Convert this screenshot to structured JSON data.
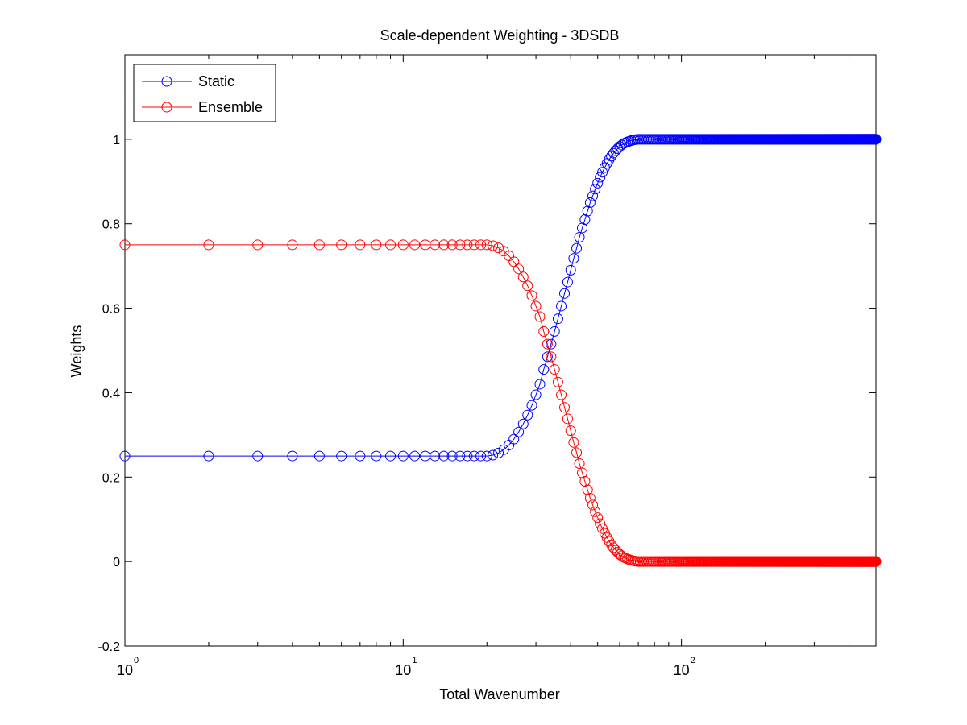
{
  "chart_data": {
    "type": "line",
    "title": "Scale-dependent Weighting - 3DSDB",
    "xlabel": "Total Wavenumber",
    "ylabel": "Weights",
    "xscale": "log",
    "xlim": [
      1,
      500
    ],
    "ylim": [
      -0.2,
      1.2
    ],
    "yticks": [
      "-0.2",
      "0",
      "0.2",
      "0.4",
      "0.6",
      "0.8",
      "1"
    ],
    "xticks": [
      {
        "base": "10",
        "exp": "0"
      },
      {
        "base": "10",
        "exp": "1"
      },
      {
        "base": "10",
        "exp": "2"
      }
    ],
    "x_values": "every integer wavenumber from 1 to 500",
    "grid": false,
    "legend_position": "top-left",
    "marker": "circle",
    "series": [
      {
        "name": "Static",
        "color": "#0000ff",
        "points": [
          [
            1,
            0.25
          ],
          [
            20,
            0.25
          ],
          [
            21,
            0.252
          ],
          [
            22,
            0.257
          ],
          [
            23,
            0.265
          ],
          [
            24,
            0.276
          ],
          [
            25,
            0.29
          ],
          [
            26,
            0.307
          ],
          [
            27,
            0.326
          ],
          [
            28,
            0.347
          ],
          [
            29,
            0.37
          ],
          [
            30,
            0.395
          ],
          [
            31,
            0.42
          ],
          [
            32,
            0.455
          ],
          [
            33,
            0.485
          ],
          [
            34,
            0.515
          ],
          [
            35,
            0.545
          ],
          [
            36,
            0.575
          ],
          [
            37,
            0.605
          ],
          [
            38,
            0.635
          ],
          [
            39,
            0.662
          ],
          [
            40,
            0.69
          ],
          [
            41,
            0.718
          ],
          [
            42,
            0.742
          ],
          [
            43,
            0.768
          ],
          [
            44,
            0.79
          ],
          [
            45,
            0.81
          ],
          [
            46,
            0.83
          ],
          [
            47,
            0.85
          ],
          [
            48,
            0.866
          ],
          [
            49,
            0.882
          ],
          [
            50,
            0.896
          ],
          [
            51,
            0.91
          ],
          [
            52,
            0.922
          ],
          [
            53,
            0.933
          ],
          [
            54,
            0.943
          ],
          [
            55,
            0.952
          ],
          [
            56,
            0.96
          ],
          [
            57,
            0.967
          ],
          [
            58,
            0.973
          ],
          [
            59,
            0.978
          ],
          [
            60,
            0.983
          ],
          [
            62,
            0.99
          ],
          [
            64,
            0.994
          ],
          [
            66,
            0.997
          ],
          [
            68,
            0.999
          ],
          [
            70,
            1.0
          ],
          [
            500,
            1.0
          ]
        ]
      },
      {
        "name": "Ensemble",
        "color": "#ff0000",
        "points": [
          [
            1,
            0.75
          ],
          [
            20,
            0.75
          ],
          [
            21,
            0.748
          ],
          [
            22,
            0.743
          ],
          [
            23,
            0.735
          ],
          [
            24,
            0.724
          ],
          [
            25,
            0.71
          ],
          [
            26,
            0.693
          ],
          [
            27,
            0.674
          ],
          [
            28,
            0.653
          ],
          [
            29,
            0.63
          ],
          [
            30,
            0.605
          ],
          [
            31,
            0.58
          ],
          [
            32,
            0.545
          ],
          [
            33,
            0.515
          ],
          [
            34,
            0.485
          ],
          [
            35,
            0.455
          ],
          [
            36,
            0.425
          ],
          [
            37,
            0.395
          ],
          [
            38,
            0.365
          ],
          [
            39,
            0.338
          ],
          [
            40,
            0.31
          ],
          [
            41,
            0.282
          ],
          [
            42,
            0.258
          ],
          [
            43,
            0.232
          ],
          [
            44,
            0.21
          ],
          [
            45,
            0.19
          ],
          [
            46,
            0.17
          ],
          [
            47,
            0.15
          ],
          [
            48,
            0.134
          ],
          [
            49,
            0.118
          ],
          [
            50,
            0.104
          ],
          [
            51,
            0.09
          ],
          [
            52,
            0.078
          ],
          [
            53,
            0.067
          ],
          [
            54,
            0.057
          ],
          [
            55,
            0.048
          ],
          [
            56,
            0.04
          ],
          [
            57,
            0.033
          ],
          [
            58,
            0.027
          ],
          [
            59,
            0.022
          ],
          [
            60,
            0.017
          ],
          [
            62,
            0.01
          ],
          [
            64,
            0.006
          ],
          [
            66,
            0.003
          ],
          [
            68,
            0.001
          ],
          [
            70,
            0.0
          ],
          [
            500,
            0.0
          ]
        ]
      }
    ]
  }
}
